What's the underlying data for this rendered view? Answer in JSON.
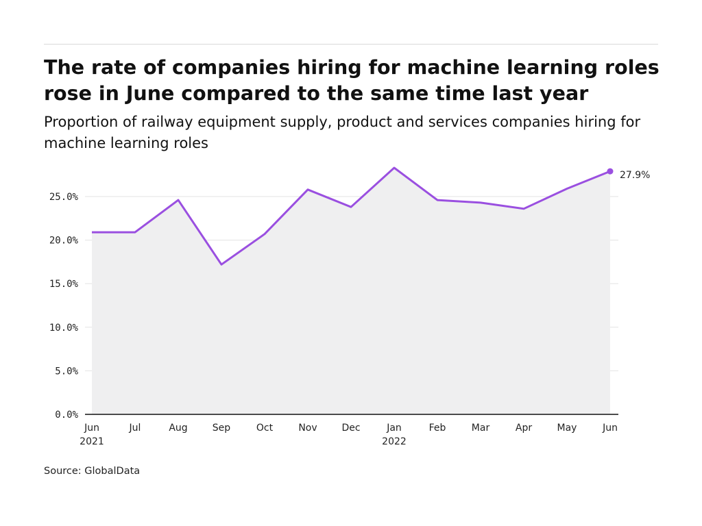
{
  "header": {
    "title": "The rate of companies hiring for machine learning roles rose in June compared to the same time last year",
    "subtitle": "Proportion of railway equipment supply, product and services companies hiring for machine learning roles"
  },
  "footer": {
    "source": "Source: GlobalData"
  },
  "colors": {
    "line": "#9a4fe0",
    "area": "#efeff0",
    "grid": "#e3e3e3",
    "axis": "#111111"
  },
  "chart_data": {
    "type": "area",
    "title": "The rate of companies hiring for machine learning roles rose in June compared to the same time last year",
    "subtitle": "Proportion of railway equipment supply, product and services companies hiring for machine learning roles",
    "xlabel": "",
    "ylabel": "",
    "categories": [
      "Jun 2021",
      "Jul 2021",
      "Aug 2021",
      "Sep 2021",
      "Oct 2021",
      "Nov 2021",
      "Dec 2021",
      "Jan 2022",
      "Feb 2022",
      "Mar 2022",
      "Apr 2022",
      "May 2022",
      "Jun 2022"
    ],
    "x_tick_labels": [
      {
        "month": "Jun",
        "year": "2021"
      },
      {
        "month": "Jul",
        "year": ""
      },
      {
        "month": "Aug",
        "year": ""
      },
      {
        "month": "Sep",
        "year": ""
      },
      {
        "month": "Oct",
        "year": ""
      },
      {
        "month": "Nov",
        "year": ""
      },
      {
        "month": "Dec",
        "year": ""
      },
      {
        "month": "Jan",
        "year": "2022"
      },
      {
        "month": "Feb",
        "year": ""
      },
      {
        "month": "Mar",
        "year": ""
      },
      {
        "month": "Apr",
        "year": ""
      },
      {
        "month": "May",
        "year": ""
      },
      {
        "month": "Jun",
        "year": ""
      }
    ],
    "values": [
      20.9,
      20.9,
      24.6,
      17.2,
      20.7,
      25.8,
      23.8,
      28.3,
      24.6,
      24.3,
      23.6,
      25.9,
      27.9
    ],
    "ylim": [
      0,
      28.3
    ],
    "yticks": [
      0,
      5,
      10,
      15,
      20,
      25
    ],
    "ytick_labels": [
      "0.0%",
      "5.0%",
      "10.0%",
      "15.0%",
      "20.0%",
      "25.0%"
    ],
    "grid": true,
    "legend": "none",
    "end_label": "27.9%"
  }
}
